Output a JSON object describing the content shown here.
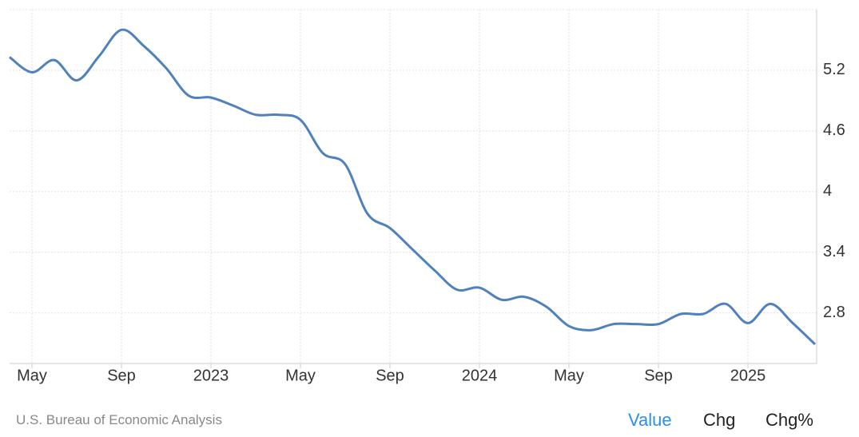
{
  "chart_data": {
    "type": "line",
    "values": [
      5.33,
      5.18,
      5.3,
      5.1,
      5.34,
      5.6,
      5.44,
      5.22,
      4.95,
      4.93,
      4.85,
      4.76,
      4.76,
      4.71,
      4.38,
      4.27,
      3.78,
      3.64,
      3.43,
      3.22,
      3.03,
      3.05,
      2.93,
      2.96,
      2.86,
      2.67,
      2.63,
      2.69,
      2.69,
      2.69,
      2.79,
      2.79,
      2.89,
      2.7,
      2.89,
      2.7,
      2.49
    ],
    "color": "#4f81bd",
    "xlim": [
      0,
      36
    ],
    "xticks": [
      {
        "value": 1,
        "label": "May"
      },
      {
        "value": 5,
        "label": "Sep"
      },
      {
        "value": 9,
        "label": "2023"
      },
      {
        "value": 13,
        "label": "May"
      },
      {
        "value": 17,
        "label": "Sep"
      },
      {
        "value": 21,
        "label": "2024"
      },
      {
        "value": 25,
        "label": "May"
      },
      {
        "value": 29,
        "label": "Sep"
      },
      {
        "value": 33,
        "label": "2025"
      }
    ],
    "ylim": [
      2.3,
      5.8
    ],
    "yticks": [
      2.8,
      3.4,
      4.0,
      4.6,
      5.2
    ],
    "grid": true
  },
  "footer": {
    "source": "U.S. Bureau of Economic Analysis",
    "tabs": [
      "Value",
      "Chg",
      "Chg%"
    ],
    "active_tab": 0
  }
}
